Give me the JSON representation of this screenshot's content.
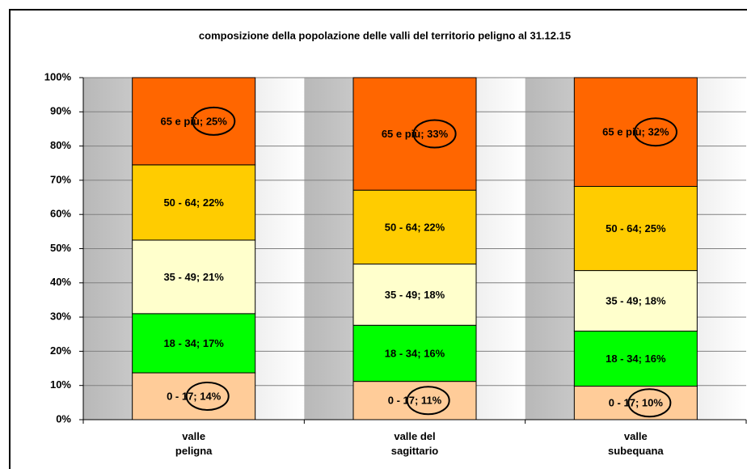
{
  "chart_data": {
    "type": "stacked_bar_100",
    "title": "composizione della popolazione delle valli del territorio peligno al 31.12.15",
    "categories": [
      "valle\npeligna",
      "valle del\nsagittario",
      "valle\nsubequana"
    ],
    "series": [
      {
        "name": "0 - 17",
        "color": "#FFCC99",
        "values": [
          13.7,
          11.2,
          9.8
        ],
        "value_labels": [
          "0 - 17; 14%",
          "0 - 17; 11%",
          "0 - 17; 10%"
        ]
      },
      {
        "name": "18 - 34",
        "color": "#00FF00",
        "values": [
          17.3,
          16.4,
          16.1
        ],
        "value_labels": [
          "18 - 34; 17%",
          "18 - 34; 16%",
          "18 - 34; 16%"
        ]
      },
      {
        "name": "35 - 49",
        "color": "#FFFFCC",
        "values": [
          21.5,
          17.9,
          17.7
        ],
        "value_labels": [
          "35 - 49; 21%",
          "35 - 49; 18%",
          "35 - 49; 18%"
        ]
      },
      {
        "name": "50 - 64",
        "color": "#FFCC00",
        "values": [
          22,
          21.6,
          24.6
        ],
        "value_labels": [
          "50 - 64; 22%",
          "50 - 64; 22%",
          "50 - 64; 25%"
        ]
      },
      {
        "name": "65 e più",
        "color": "#FF6600",
        "values": [
          25.5,
          32.9,
          31.8
        ],
        "value_labels": [
          "65 e più; 25%",
          "65 e più; 33%",
          "65 e più; 32%"
        ]
      }
    ],
    "ylim": [
      0,
      100
    ],
    "yticks": [
      {
        "value": 0,
        "label": "0%"
      },
      {
        "value": 10,
        "label": "10%"
      },
      {
        "value": 20,
        "label": "20%"
      },
      {
        "value": 30,
        "label": "30%"
      },
      {
        "value": 40,
        "label": "40%"
      },
      {
        "value": 50,
        "label": "50%"
      },
      {
        "value": 60,
        "label": "60%"
      },
      {
        "value": 70,
        "label": "70%"
      },
      {
        "value": 80,
        "label": "80%"
      },
      {
        "value": 90,
        "label": "90%"
      },
      {
        "value": 100,
        "label": "100%"
      }
    ],
    "grid": true
  }
}
